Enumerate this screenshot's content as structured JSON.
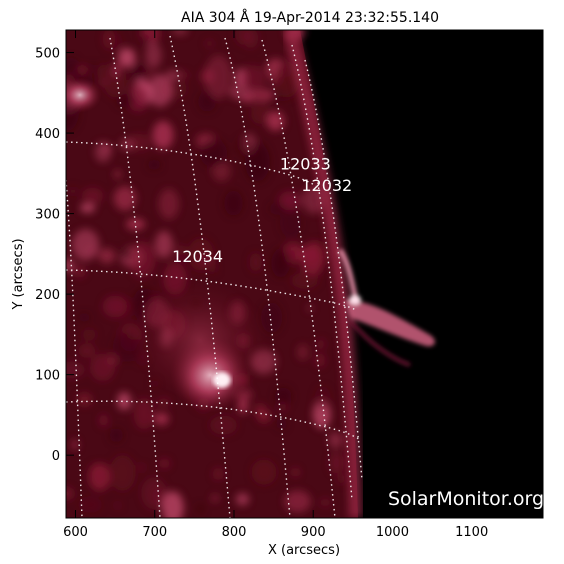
{
  "title": "AIA 304 Å 19-Apr-2014 23:32:55.140",
  "x_axis": {
    "label": "X (arcsecs)",
    "range": [
      588,
      1190
    ],
    "ticks": [
      600,
      700,
      800,
      900,
      1000,
      1100
    ]
  },
  "y_axis": {
    "label": "Y (arcsecs)",
    "range": [
      -78,
      528
    ],
    "ticks": [
      0,
      100,
      200,
      300,
      400,
      500
    ]
  },
  "active_regions": [
    {
      "id": "12033",
      "x": 858,
      "y": 355
    },
    {
      "id": "12032",
      "x": 885,
      "y": 328
    },
    {
      "id": "12034",
      "x": 722,
      "y": 240
    }
  ],
  "watermark": "SolarMonitor.org",
  "colors": {
    "sky": "#000000",
    "disk_dark": "#2a0208",
    "disk_mid": "#6d0f24",
    "bright": "#e8a0b0",
    "grid": "#ffffff"
  }
}
